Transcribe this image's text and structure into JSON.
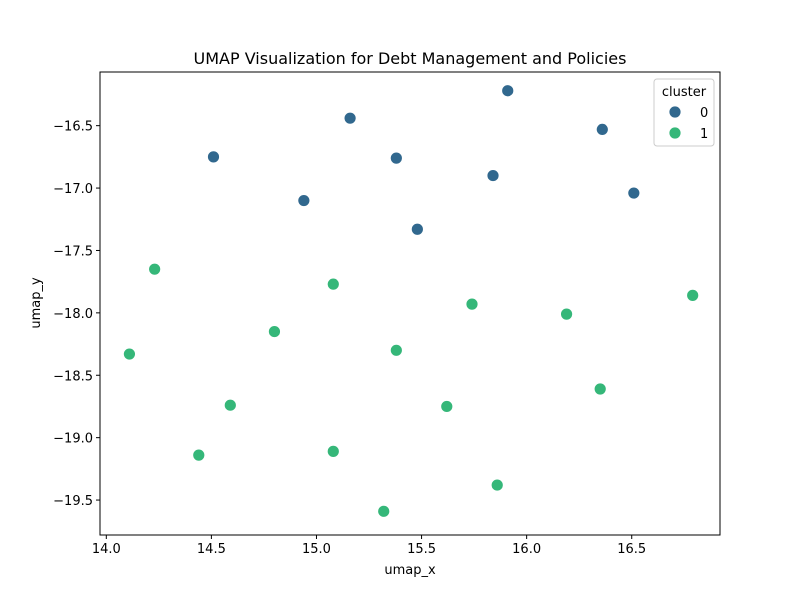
{
  "chart_data": {
    "type": "scatter",
    "title": "UMAP Visualization for Debt Management and Policies",
    "xlabel": "umap_x",
    "ylabel": "umap_y",
    "xlim": [
      13.97,
      16.92
    ],
    "ylim": [
      -19.78,
      -16.07
    ],
    "xticks": [
      14.0,
      14.5,
      15.0,
      15.5,
      16.0,
      16.5
    ],
    "xtick_labels": [
      "14.0",
      "14.5",
      "15.0",
      "15.5",
      "16.0",
      "16.5"
    ],
    "yticks": [
      -16.5,
      -17.0,
      -17.5,
      -18.0,
      -18.5,
      -19.0,
      -19.5
    ],
    "ytick_labels": [
      "−16.5",
      "−17.0",
      "−17.5",
      "−18.0",
      "−18.5",
      "−19.0",
      "−19.5"
    ],
    "grid": false,
    "legend": {
      "title": "cluster",
      "placement": "top-right"
    },
    "series": [
      {
        "name": "0",
        "color": "#31688e",
        "points": [
          {
            "x": 15.91,
            "y": -16.22
          },
          {
            "x": 15.16,
            "y": -16.44
          },
          {
            "x": 16.36,
            "y": -16.53
          },
          {
            "x": 14.51,
            "y": -16.75
          },
          {
            "x": 15.38,
            "y": -16.76
          },
          {
            "x": 15.84,
            "y": -16.9
          },
          {
            "x": 16.51,
            "y": -17.04
          },
          {
            "x": 14.94,
            "y": -17.1
          },
          {
            "x": 15.48,
            "y": -17.33
          }
        ]
      },
      {
        "name": "1",
        "color": "#35b779",
        "points": [
          {
            "x": 14.23,
            "y": -17.65
          },
          {
            "x": 15.08,
            "y": -17.77
          },
          {
            "x": 16.79,
            "y": -17.86
          },
          {
            "x": 15.74,
            "y": -17.93
          },
          {
            "x": 16.19,
            "y": -18.01
          },
          {
            "x": 14.8,
            "y": -18.15
          },
          {
            "x": 15.38,
            "y": -18.3
          },
          {
            "x": 14.11,
            "y": -18.33
          },
          {
            "x": 16.35,
            "y": -18.61
          },
          {
            "x": 14.59,
            "y": -18.74
          },
          {
            "x": 15.62,
            "y": -18.75
          },
          {
            "x": 15.08,
            "y": -19.11
          },
          {
            "x": 14.44,
            "y": -19.14
          },
          {
            "x": 15.86,
            "y": -19.38
          },
          {
            "x": 15.32,
            "y": -19.59
          }
        ]
      }
    ]
  }
}
